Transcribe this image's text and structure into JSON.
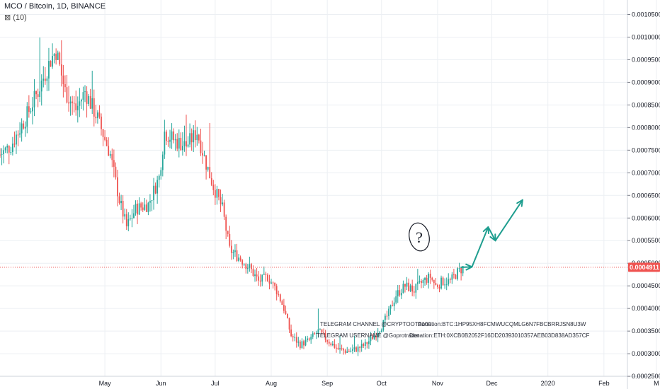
{
  "header": {
    "title": "MCO / Bitcoin, 1D, BINANCE",
    "study": "⊠ (10)"
  },
  "price_badge": "0.0004911",
  "annotations": {
    "question_mark": "?",
    "telegram_channel": "TELEGRAM CHANNEL @CRYPTOOTA100",
    "donation_btc": "Donation:BTC:1HP95XH8FCMWUCQMLG6N7FBCBRRJSN8U3W",
    "telegram_username": "TELEGRAM USERNAME @Goprotrader",
    "donation_eth": "Donation:ETH:0XCB0B2052F16DD20393010357AEB03D838AD357CF"
  },
  "colors": {
    "up": "#26a69a",
    "down": "#ef5350",
    "arrow": "#1f9e8f",
    "badge": "#ef5350",
    "grid": "#eceff3"
  },
  "chart_data": {
    "type": "candlestick",
    "title": "MCO / Bitcoin, 1D, BINANCE",
    "y_tick_labels": [
      "0.0010500",
      "0.0010000",
      "0.0009500",
      "0.0009000",
      "0.0008500",
      "0.0008000",
      "0.0007500",
      "0.0007000",
      "0.0006500",
      "0.0006000",
      "0.0005500",
      "0.0005000",
      "0.0004500",
      "0.0004000",
      "0.0003500",
      "0.0003000",
      "0.0002500"
    ],
    "y_ticks": [
      0.00105,
      0.001,
      0.00095,
      0.0009,
      0.00085,
      0.0008,
      0.00075,
      0.0007,
      0.00065,
      0.0006,
      0.00055,
      0.0005,
      0.00045,
      0.0004,
      0.00035,
      0.0003,
      0.00025
    ],
    "ylim": [
      0.000222,
      0.001082
    ],
    "x_tick_labels": [
      "May",
      "Jun",
      "Jul",
      "Aug",
      "Sep",
      "Oct",
      "Nov",
      "Dec",
      "2020",
      "Feb",
      "M"
    ],
    "x_ticks": [
      "2019-05-01",
      "2019-06-01",
      "2019-07-01",
      "2019-08-01",
      "2019-09-01",
      "2019-10-01",
      "2019-11-01",
      "2019-12-01",
      "2020-01-01",
      "2020-02-01",
      "2020-03-01"
    ],
    "xlim": [
      "2019-03-04",
      "2020-03-03"
    ],
    "last_price": 0.0004911,
    "path_points": [
      [
        "2019-03-04",
        0.00074
      ],
      [
        "2019-03-10",
        0.00076
      ],
      [
        "2019-03-18",
        0.00082
      ],
      [
        "2019-03-25",
        0.00088
      ],
      [
        "2019-04-01",
        0.00095
      ],
      [
        "2019-04-04",
        0.00097
      ],
      [
        "2019-04-09",
        0.00088
      ],
      [
        "2019-04-15",
        0.00084
      ],
      [
        "2019-04-20",
        0.00088
      ],
      [
        "2019-04-27",
        0.00082
      ],
      [
        "2019-05-04",
        0.00074
      ],
      [
        "2019-05-09",
        0.00064
      ],
      [
        "2019-05-13",
        0.00058
      ],
      [
        "2019-05-18",
        0.00062
      ],
      [
        "2019-05-25",
        0.00063
      ],
      [
        "2019-05-31",
        0.00069
      ],
      [
        "2019-06-03",
        0.00079
      ],
      [
        "2019-06-09",
        0.00077
      ],
      [
        "2019-06-15",
        0.00076
      ],
      [
        "2019-06-21",
        0.00079
      ],
      [
        "2019-06-26",
        0.00072
      ],
      [
        "2019-06-30",
        0.00067
      ],
      [
        "2019-07-05",
        0.00062
      ],
      [
        "2019-07-09",
        0.00053
      ],
      [
        "2019-07-15",
        0.00051
      ],
      [
        "2019-07-20",
        0.00049
      ],
      [
        "2019-07-25",
        0.00046
      ],
      [
        "2019-07-30",
        0.00047
      ],
      [
        "2019-08-04",
        0.00044
      ],
      [
        "2019-08-08",
        0.0004
      ],
      [
        "2019-08-12",
        0.00034
      ],
      [
        "2019-08-17",
        0.00032
      ],
      [
        "2019-08-22",
        0.00033
      ],
      [
        "2019-08-27",
        0.00035
      ],
      [
        "2019-09-01",
        0.00033
      ],
      [
        "2019-09-07",
        0.00031
      ],
      [
        "2019-09-12",
        0.000305
      ],
      [
        "2019-09-17",
        0.00031
      ],
      [
        "2019-09-22",
        0.00032
      ],
      [
        "2019-09-27",
        0.00034
      ],
      [
        "2019-10-01",
        0.00036
      ],
      [
        "2019-10-05",
        0.00039
      ],
      [
        "2019-10-09",
        0.00043
      ],
      [
        "2019-10-14",
        0.00045
      ],
      [
        "2019-10-19",
        0.00044
      ],
      [
        "2019-10-24",
        0.00046
      ],
      [
        "2019-10-28",
        0.00047
      ],
      [
        "2019-10-31",
        0.00045
      ],
      [
        "2019-11-04",
        0.00046
      ],
      [
        "2019-11-08",
        0.00046
      ],
      [
        "2019-11-12",
        0.00048
      ],
      [
        "2019-11-15",
        0.00049
      ]
    ],
    "projection_arrow_points": [
      [
        "2019-11-14",
        0.0004911
      ],
      [
        "2019-11-20",
        0.000492
      ],
      [
        "2019-11-29",
        0.00058
      ],
      [
        "2019-12-03",
        0.00055
      ],
      [
        "2019-12-18",
        0.00064
      ]
    ]
  }
}
